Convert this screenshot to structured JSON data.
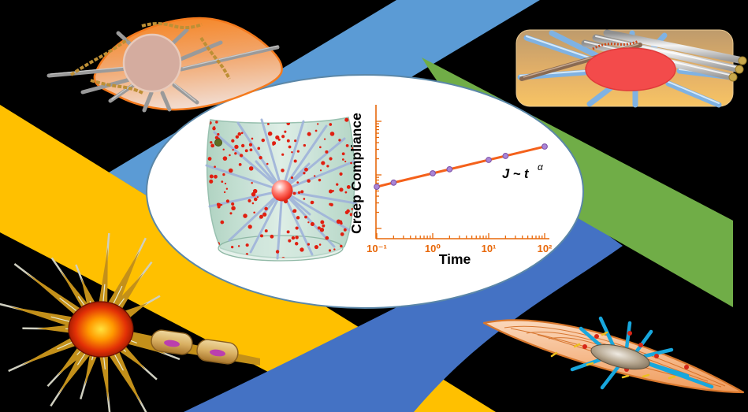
{
  "colors": {
    "background": "#000000",
    "band_yellow": "#FFC000",
    "band_blue_light": "#5B9BD5",
    "band_blue_dark": "#4472C4",
    "band_green": "#70AD47",
    "ellipse_fill": "#FFFFFF",
    "ellipse_stroke": "#5B87A8"
  },
  "chart_data": {
    "type": "line",
    "x_scale": "log",
    "y_scale": "log",
    "x": [
      0.1,
      0.2,
      1,
      2,
      10,
      20,
      100
    ],
    "y": [
      0.56,
      0.67,
      1.0,
      1.19,
      1.78,
      2.11,
      3.16
    ],
    "xlim": [
      0.1,
      100
    ],
    "xlabel": "Time",
    "ylabel": "Creep Compliance",
    "x_tick_labels": [
      "10⁻¹",
      "10⁰",
      "10¹",
      "10²"
    ],
    "grid": "off",
    "line_color": "#F4611B",
    "marker_color": "#A985D6",
    "marker_edge_color": "#7B4FA6",
    "axis_color": "#E8680A",
    "label_color": "#000000"
  },
  "annotation": {
    "body": "J ~ t",
    "exponent": "α"
  },
  "illustrations": {
    "center": "cell-cylinder-with-tracer-particles-icon",
    "top_left": "fibroblast-cell-icon",
    "top_right": "epithelial-cell-icon",
    "bottom_left": "neuron-cell-icon",
    "bottom_right": "spindle-muscle-cell-icon"
  }
}
